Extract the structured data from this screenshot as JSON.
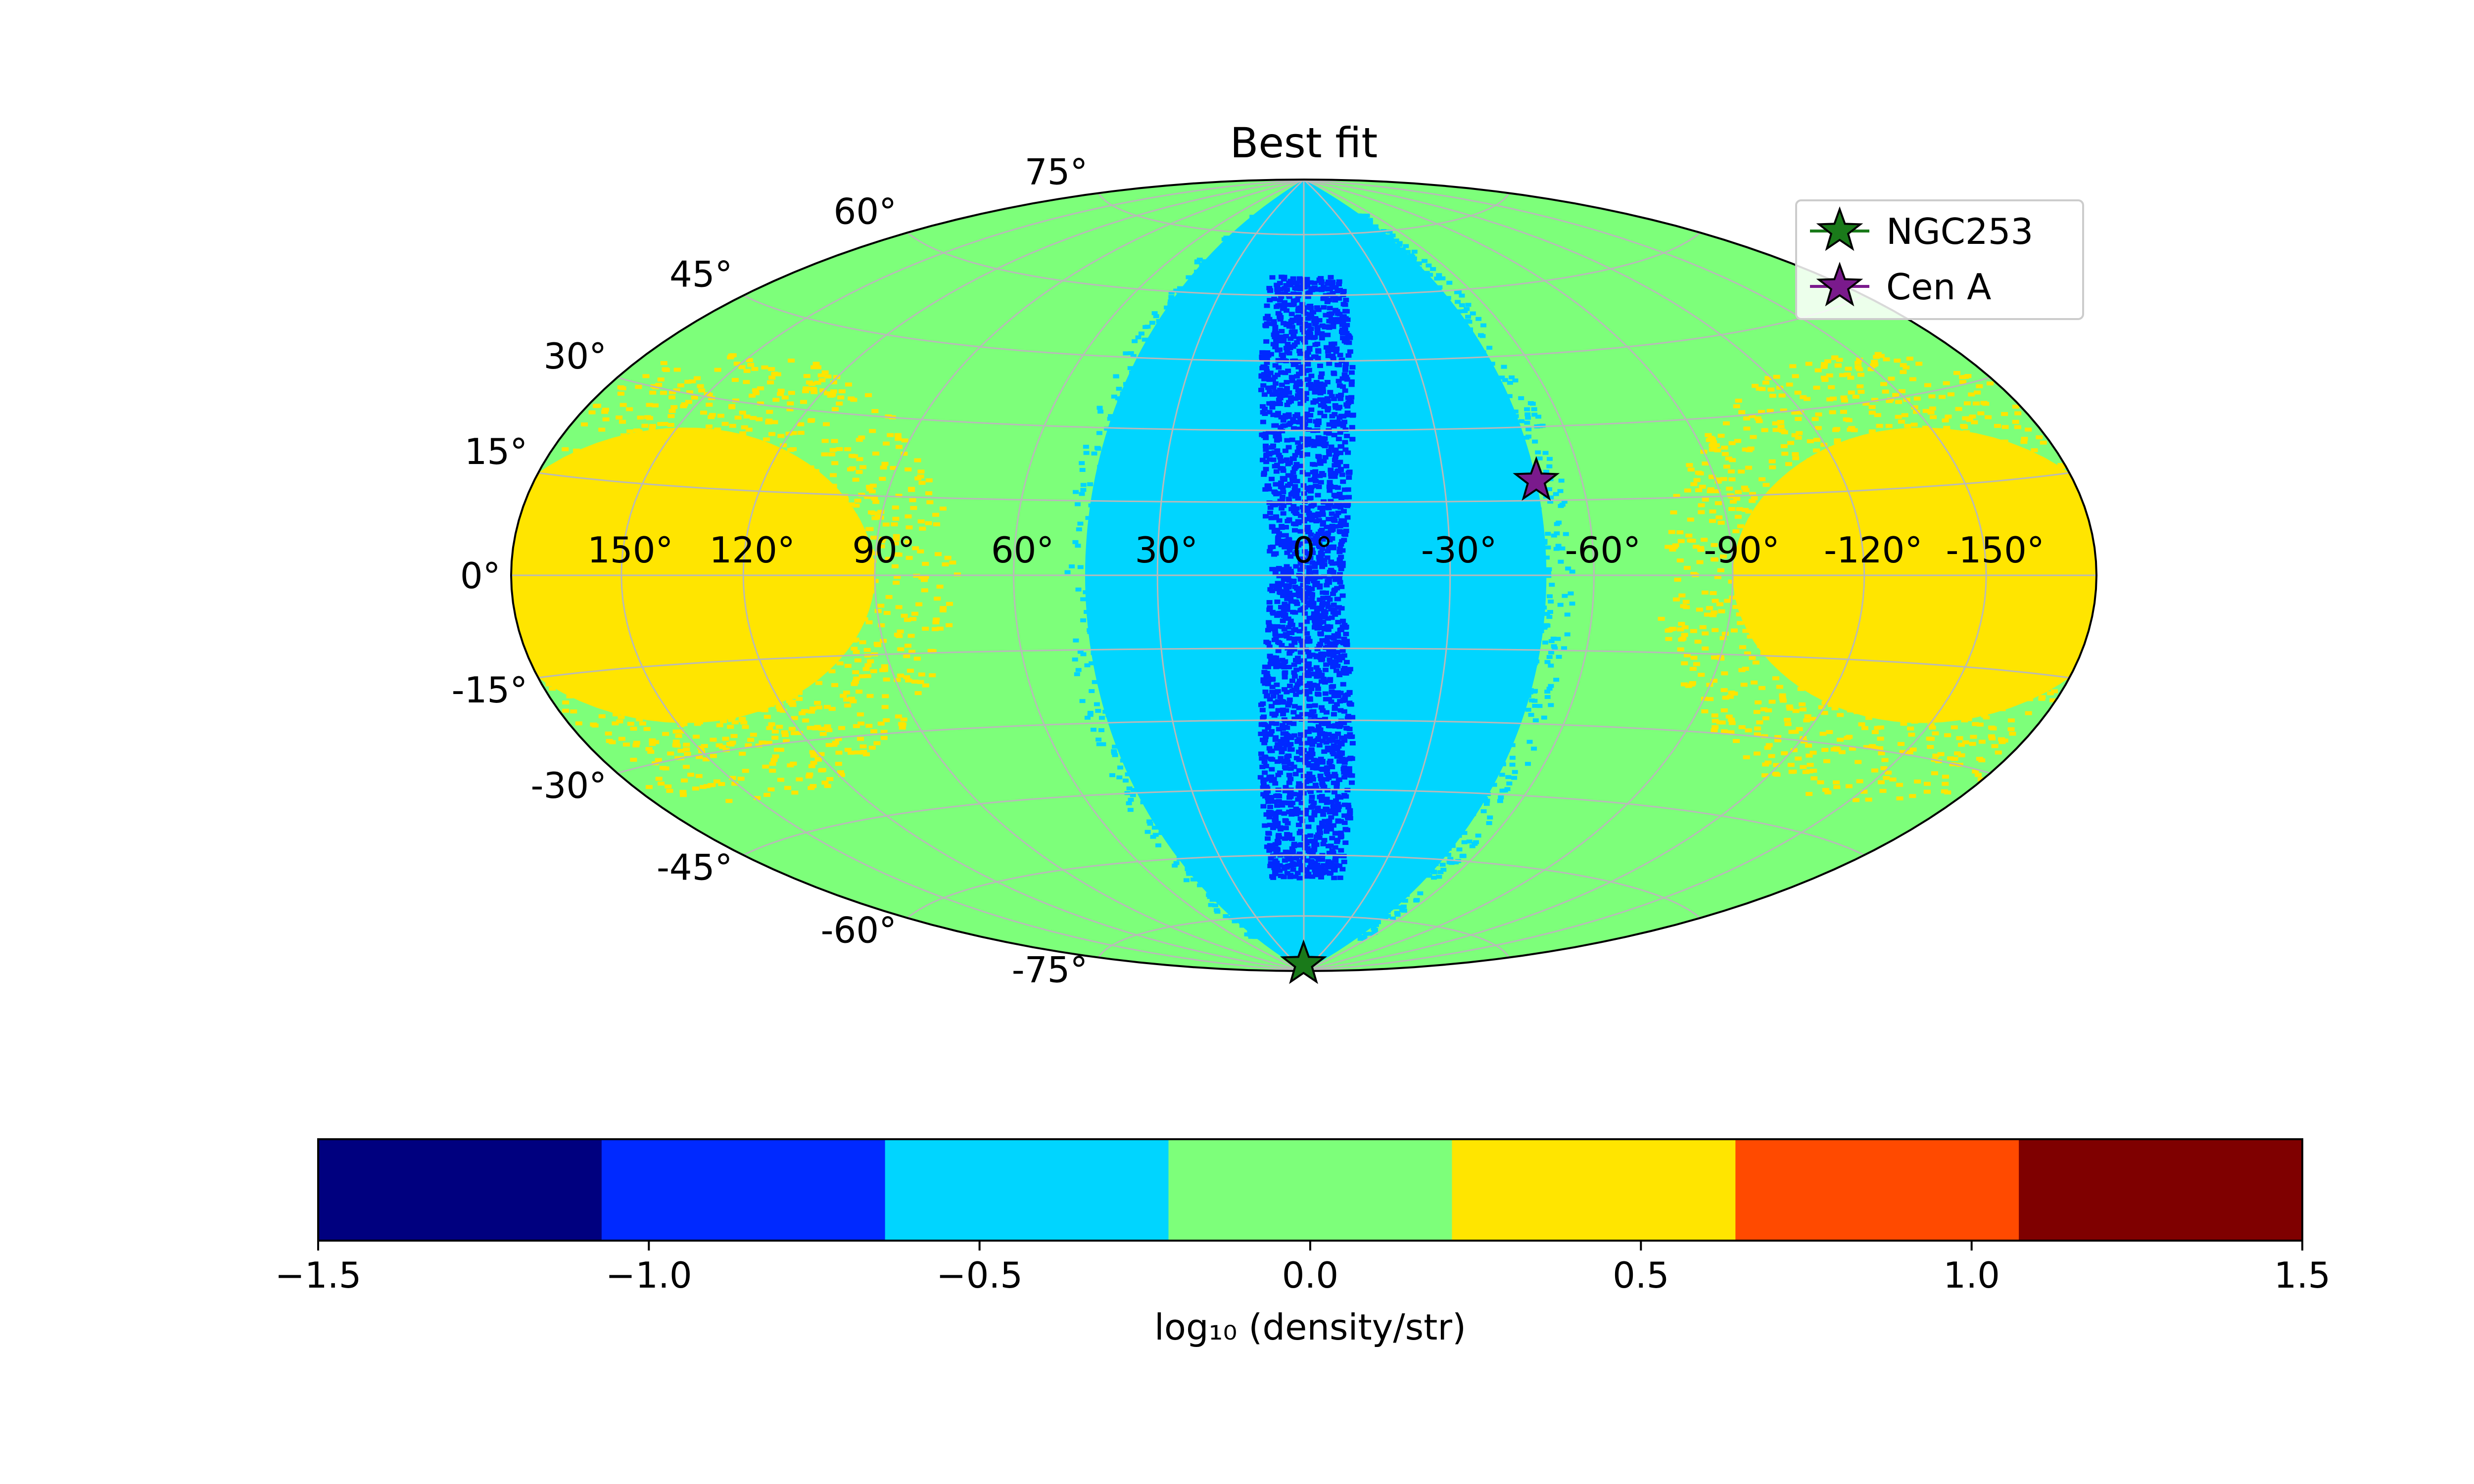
{
  "chart_data": {
    "type": "heatmap",
    "projection": "hammer",
    "title": "Best fit",
    "lon_tick_labels": [
      {
        "value": 150,
        "label": "150°"
      },
      {
        "value": 120,
        "label": "120°"
      },
      {
        "value": 90,
        "label": "90°"
      },
      {
        "value": 60,
        "label": "60°"
      },
      {
        "value": 30,
        "label": "30°"
      },
      {
        "value": 0,
        "label": "0°"
      },
      {
        "value": -30,
        "label": "-30°"
      },
      {
        "value": -60,
        "label": "-60°"
      },
      {
        "value": -90,
        "label": "-90°"
      },
      {
        "value": -120,
        "label": "-120°"
      },
      {
        "value": -150,
        "label": "-150°"
      }
    ],
    "lat_tick_labels": [
      {
        "value": 75,
        "label": "75°"
      },
      {
        "value": 60,
        "label": "60°"
      },
      {
        "value": 45,
        "label": "45°"
      },
      {
        "value": 30,
        "label": "30°"
      },
      {
        "value": 15,
        "label": "15°"
      },
      {
        "value": 0,
        "label": "0°"
      },
      {
        "value": -15,
        "label": "-15°"
      },
      {
        "value": -30,
        "label": "-30°"
      },
      {
        "value": -45,
        "label": "-45°"
      },
      {
        "value": -60,
        "label": "-60°"
      },
      {
        "value": -75,
        "label": "-75°"
      }
    ],
    "grid": true,
    "legend": {
      "position": "top-right",
      "entries": [
        {
          "name": "NGC253",
          "marker": "star",
          "color": "#1a7a1a",
          "lon": 1,
          "lat": -88
        },
        {
          "name": "Cen A",
          "marker": "star",
          "color": "#7a1a8c",
          "lon": -50,
          "lat": 19
        }
      ]
    },
    "regions": [
      {
        "name": "background",
        "level": 0.0,
        "lon_range": [
          -180,
          180
        ]
      },
      {
        "name": "galactic-anticenter-east",
        "level": 0.5,
        "lon_center": 140,
        "lon_halfwidth": 50,
        "lat_halfwidth": 25
      },
      {
        "name": "galactic-anticenter-west",
        "level": 0.5,
        "lon_center": -140,
        "lon_halfwidth": 50,
        "lat_halfwidth": 25
      },
      {
        "name": "low-density-band",
        "level": -0.5,
        "lon_range": [
          -50,
          45
        ]
      },
      {
        "name": "lowest-density-core",
        "level": -1.0,
        "lon_range": [
          -12,
          12
        ]
      }
    ],
    "colorbar": {
      "label": "log₁₀ (density/str)",
      "vmin": -1.5,
      "vmax": 1.5,
      "ticks": [
        {
          "value": -1.5,
          "label": "−1.5"
        },
        {
          "value": -1.0,
          "label": "−1.0"
        },
        {
          "value": -0.5,
          "label": "−0.5"
        },
        {
          "value": 0.0,
          "label": "0.0"
        },
        {
          "value": 0.5,
          "label": "0.5"
        },
        {
          "value": 1.0,
          "label": "1.0"
        },
        {
          "value": 1.5,
          "label": "1.5"
        }
      ],
      "bins": [
        {
          "from": -1.5,
          "to": -1.0714,
          "color": "#00007f"
        },
        {
          "from": -1.0714,
          "to": -0.6429,
          "color": "#0029ff"
        },
        {
          "from": -0.6429,
          "to": -0.2143,
          "color": "#00d5ff"
        },
        {
          "from": -0.2143,
          "to": 0.2143,
          "color": "#7dff7a"
        },
        {
          "from": 0.2143,
          "to": 0.6429,
          "color": "#ffe500"
        },
        {
          "from": 0.6429,
          "to": 1.0714,
          "color": "#ff4a00"
        },
        {
          "from": 1.0714,
          "to": 1.5,
          "color": "#7f0000"
        }
      ]
    }
  }
}
